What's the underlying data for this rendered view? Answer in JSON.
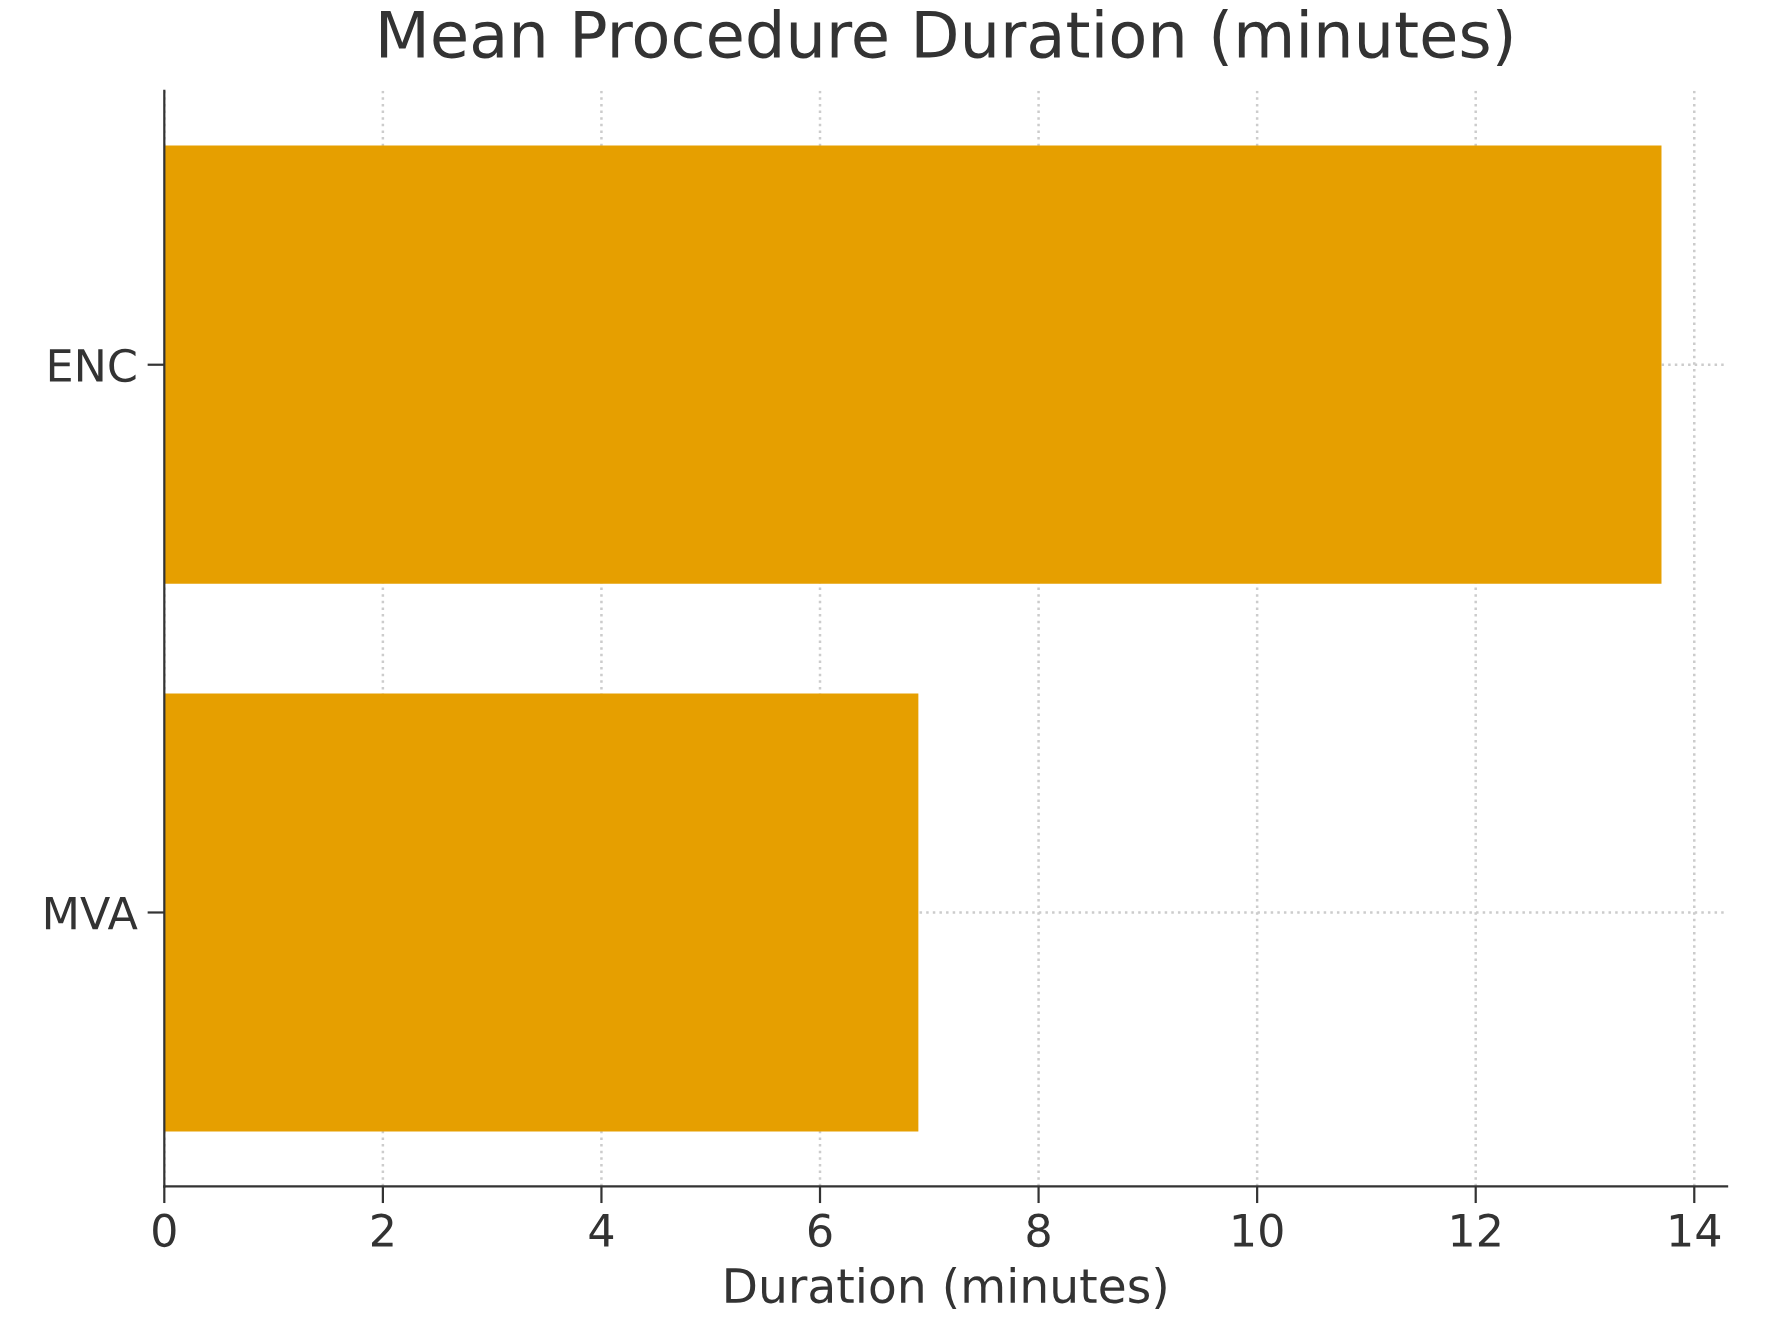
{
  "chart_data": {
    "type": "bar",
    "orientation": "horizontal",
    "title": "Mean Procedure Duration (minutes)",
    "xlabel": "Duration (minutes)",
    "categories": [
      "ENC",
      "MVA"
    ],
    "values": [
      13.7,
      6.9
    ],
    "color": "#e69f00",
    "xlim": [
      0,
      14.3
    ],
    "xticks": [
      0,
      2,
      4,
      6,
      8,
      10,
      12,
      14
    ],
    "grid": true
  }
}
